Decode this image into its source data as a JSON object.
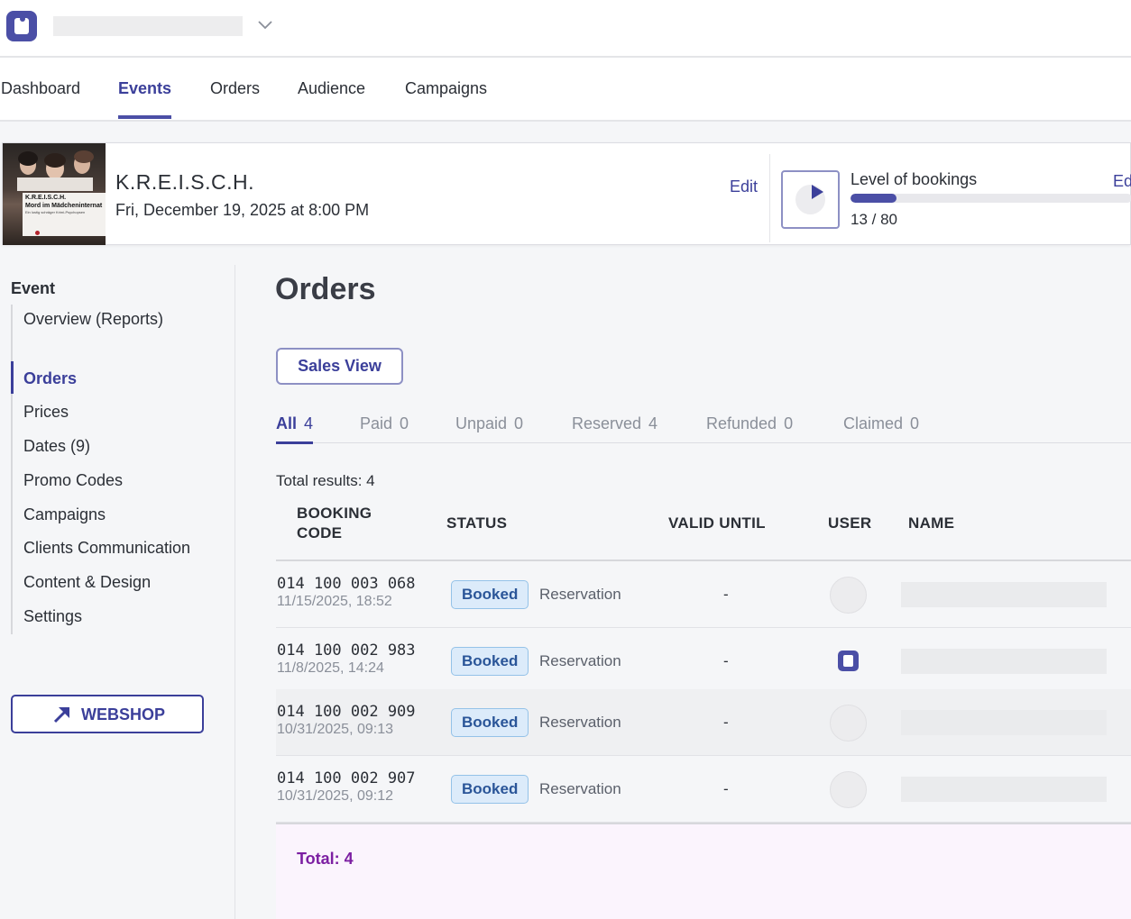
{
  "nav": {
    "tabs": [
      {
        "label": "Dashboard"
      },
      {
        "label": "Events"
      },
      {
        "label": "Orders"
      },
      {
        "label": "Audience"
      },
      {
        "label": "Campaigns"
      }
    ],
    "active": "Events"
  },
  "event": {
    "poster": {
      "title_line1": "K.R.E.I.S.C.H.",
      "title_line2": "Mord im Mädcheninternat",
      "tagline": "Ein lustig schräger Krimi-Psychopsen"
    },
    "title": "K.R.E.I.S.C.H.",
    "date": "Fri, December 19, 2025 at 8:00 PM",
    "edit_label": "Edit",
    "bookings": {
      "label": "Level of bookings",
      "count_text": "13 / 80",
      "booked": 13,
      "capacity": 80,
      "edit_label": "Ed"
    }
  },
  "sidebar": {
    "heading": "Event",
    "items": [
      {
        "label": "Overview (Reports)"
      },
      {
        "label": "Orders"
      },
      {
        "label": "Prices"
      },
      {
        "label": "Dates (9)"
      },
      {
        "label": "Promo Codes"
      },
      {
        "label": "Campaigns"
      },
      {
        "label": "Clients Communication"
      },
      {
        "label": "Content & Design"
      },
      {
        "label": "Settings"
      }
    ],
    "active": "Orders",
    "webshop_label": "WEBSHOP"
  },
  "main": {
    "title": "Orders",
    "sales_view_label": "Sales View",
    "filters": [
      {
        "label": "All",
        "count": "4"
      },
      {
        "label": "Paid",
        "count": "0"
      },
      {
        "label": "Unpaid",
        "count": "0"
      },
      {
        "label": "Reserved",
        "count": "4"
      },
      {
        "label": "Refunded",
        "count": "0"
      },
      {
        "label": "Claimed",
        "count": "0"
      }
    ],
    "total_results": "Total results: 4",
    "columns": {
      "booking_code_1": "BOOKING",
      "booking_code_2": "CODE",
      "status": "STATUS",
      "valid_until": "VALID UNTIL",
      "user": "USER",
      "name": "NAME"
    },
    "rows": [
      {
        "code": "014 100 003 068",
        "timestamp": "11/15/2025, 18:52",
        "status": "Booked",
        "type": "Reservation",
        "valid_until": "-",
        "user_avatar": "placeholder-avatar"
      },
      {
        "code": "014 100 002 983",
        "timestamp": "11/8/2025, 14:24",
        "status": "Booked",
        "type": "Reservation",
        "valid_until": "-",
        "user_avatar": "brand-logo-avatar"
      },
      {
        "code": "014 100 002 909",
        "timestamp": "10/31/2025, 09:13",
        "status": "Booked",
        "type": "Reservation",
        "valid_until": "-",
        "user_avatar": "placeholder-avatar"
      },
      {
        "code": "014 100 002 907",
        "timestamp": "10/31/2025, 09:12",
        "status": "Booked",
        "type": "Reservation",
        "valid_until": "-",
        "user_avatar": "placeholder-avatar"
      }
    ],
    "total_label": "Total: 4"
  },
  "colors": {
    "accent": "#3b3f9a",
    "badge_bg": "#dcebfa",
    "badge_text": "#2a5598",
    "total_text": "#7c1fa2"
  },
  "icons": {
    "logo": "brand-logo-icon",
    "org_dropdown": "chevron-down-icon",
    "play": "play-icon",
    "webshop": "external-arrow-icon"
  }
}
